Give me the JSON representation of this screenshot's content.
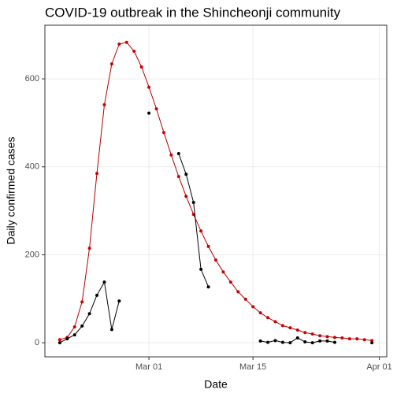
{
  "chart_data": {
    "type": "line",
    "title": "COVID-19 outbreak in the Shincheonji community",
    "xlabel": "Date",
    "ylabel": "Daily confirmed cases",
    "x": [
      "Feb 18",
      "Feb 19",
      "Feb 20",
      "Feb 21",
      "Feb 22",
      "Feb 23",
      "Feb 24",
      "Feb 25",
      "Feb 26",
      "Feb 27",
      "Feb 28",
      "Feb 29",
      "Mar 01",
      "Mar 02",
      "Mar 03",
      "Mar 04",
      "Mar 05",
      "Mar 06",
      "Mar 07",
      "Mar 08",
      "Mar 09",
      "Mar 10",
      "Mar 11",
      "Mar 12",
      "Mar 13",
      "Mar 14",
      "Mar 15",
      "Mar 16",
      "Mar 17",
      "Mar 18",
      "Mar 19",
      "Mar 20",
      "Mar 21",
      "Mar 22",
      "Mar 23",
      "Mar 24",
      "Mar 25",
      "Mar 26",
      "Mar 27",
      "Mar 28",
      "Mar 29",
      "Mar 30",
      "Mar 31"
    ],
    "series": [
      {
        "color": "#b30000",
        "values": [
          7,
          12,
          36,
          93,
          215,
          385,
          541,
          634,
          679,
          683,
          663,
          627,
          581,
          532,
          478,
          427,
          378,
          333,
          292,
          254,
          219,
          188,
          161,
          138,
          116,
          99,
          82,
          68,
          57,
          48,
          39,
          34,
          29,
          23,
          20,
          16,
          14,
          12,
          11,
          9,
          9,
          7,
          5
        ]
      },
      {
        "color": "#000000",
        "values": [
          0,
          9,
          18,
          38,
          66,
          108,
          138,
          30,
          95,
          null,
          null,
          null,
          522,
          null,
          null,
          null,
          430,
          383,
          319,
          167,
          127,
          null,
          null,
          null,
          null,
          null,
          null,
          4,
          1,
          5,
          1,
          0,
          11,
          2,
          0,
          4,
          4,
          1,
          null,
          null,
          null,
          null,
          0
        ]
      }
    ],
    "xlim": [
      "Feb 16",
      "Apr 02"
    ],
    "xticks": [
      "Mar 01",
      "Mar 15",
      "Apr 01"
    ],
    "ylim": [
      -32,
      722
    ],
    "yticks": [
      0,
      200,
      400,
      600
    ],
    "grid": true
  }
}
